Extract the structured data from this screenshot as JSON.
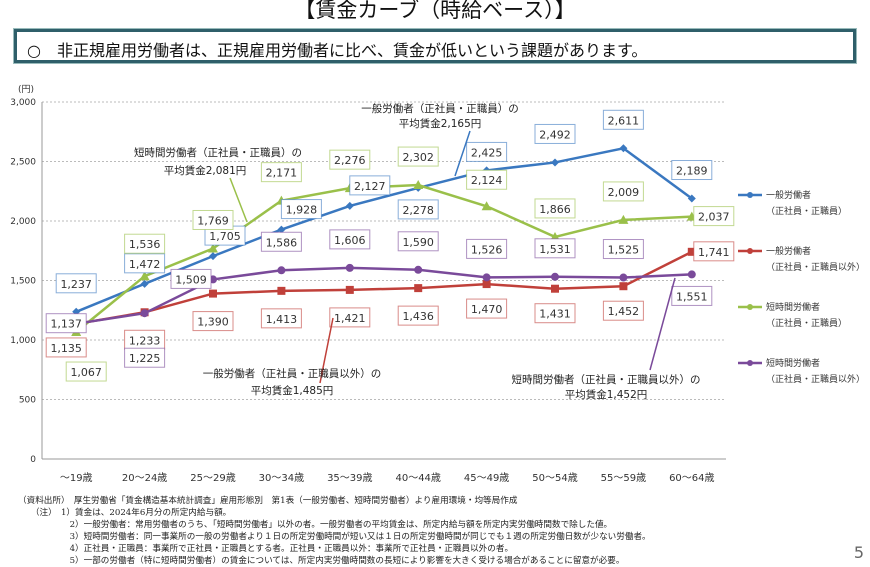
{
  "title": "【賃金カーブ（時給ベース）】",
  "banner": "○　非正規雇用労働者は、正規雇用労働者に比べ、賃金が低いという課題があります。",
  "chart_data": {
    "type": "line",
    "ylabel": "(円)",
    "ylim": [
      0,
      3000
    ],
    "yticks": [
      0,
      500,
      1000,
      1500,
      2000,
      2500,
      3000
    ],
    "ytick_labels": [
      "0",
      "500",
      "1,000",
      "1,500",
      "2,000",
      "2,500",
      "3,000"
    ],
    "grid": true,
    "legend": "right",
    "categories": [
      "～19歳",
      "20～24歳",
      "25～29歳",
      "30～34歳",
      "35～39歳",
      "40～44歳",
      "45～49歳",
      "50～54歳",
      "55～59歳",
      "60～64歳"
    ],
    "series": [
      {
        "name": "一般労働者",
        "name2": "（正社員・正職員）",
        "color": "#3a78c0",
        "marker": "diamond",
        "values": [
          1237,
          1472,
          1705,
          1928,
          2127,
          2278,
          2425,
          2492,
          2611,
          2189
        ]
      },
      {
        "name": "一般労働者",
        "name2": "（正社員・正職員以外）",
        "color": "#c0403a",
        "marker": "square",
        "values": [
          1135,
          1233,
          1390,
          1413,
          1421,
          1436,
          1470,
          1431,
          1452,
          1741
        ]
      },
      {
        "name": "短時間労働者",
        "name2": "（正社員・正職員）",
        "color": "#9ac04a",
        "marker": "triangle",
        "values": [
          1067,
          1536,
          1769,
          2171,
          2276,
          2302,
          2124,
          1866,
          2009,
          2037
        ]
      },
      {
        "name": "短時間労働者",
        "name2": "（正社員・正職員以外）",
        "color": "#7a4a9a",
        "marker": "circle",
        "values": [
          1137,
          1225,
          1509,
          1586,
          1606,
          1590,
          1526,
          1531,
          1525,
          1551
        ]
      }
    ],
    "data_labels": [
      "1,237",
      "1,472",
      "1,705",
      "1,928",
      "2,127",
      "2,278",
      "2,425",
      "2,492",
      "2,611",
      "2,189",
      "1,135",
      "1,233",
      "1,390",
      "1,413",
      "1,421",
      "1,436",
      "1,470",
      "1,431",
      "1,452",
      "1,741",
      "1,067",
      "1,536",
      "1,769",
      "2,171",
      "2,276",
      "2,302",
      "2,124",
      "1,866",
      "2,009",
      "2,037",
      "1,137",
      "1,225",
      "1,509",
      "1,586",
      "1,606",
      "1,590",
      "1,526",
      "1,531",
      "1,525",
      "1,551"
    ],
    "annotations": [
      {
        "line1": "一般労働者（正社員・正職員）の",
        "line2": "平均賃金2,165円"
      },
      {
        "line1": "短時間労働者（正社員・正職員）の",
        "line2": "平均賃金2,081円"
      },
      {
        "line1": "一般労働者（正社員・正職員以外）の",
        "line2": "平均賃金1,485円"
      },
      {
        "line1": "短時間労働者（正社員・正職員以外）の",
        "line2": "平均賃金1,452円"
      }
    ]
  },
  "notes": [
    "（資料出所）　厚生労働省「賃金構造基本統計調査」雇用形態別　第1表（一般労働者、短時間労働者）より雇用環境・均等局作成",
    "　　（注）　1）賃金は、2024年6月分の所定内給与額。",
    "　　　　　　2）一般労働者：常用労働者のうち、「短時間労働者」以外の者。一般労働者の平均賃金は、所定内給与額を所定内実労働時間数で除した値。",
    "　　　　　　3）短時間労働者：同一事業所の一般の労働者より１日の所定労働時間が短い又は１日の所定労働時間が同じでも１週の所定労働日数が少ない労働者。",
    "　　　　　　4）正社員・正職員：事業所で正社員・正職員とする者。正社員・正職員以外：事業所で正社員・正職員以外の者。",
    "　　　　　　5）一部の労働者（特に短時間労働者）の賃金については、所定内実労働時間数の長短により影響を大きく受ける場合があることに留意が必要。"
  ],
  "page_number": "5"
}
